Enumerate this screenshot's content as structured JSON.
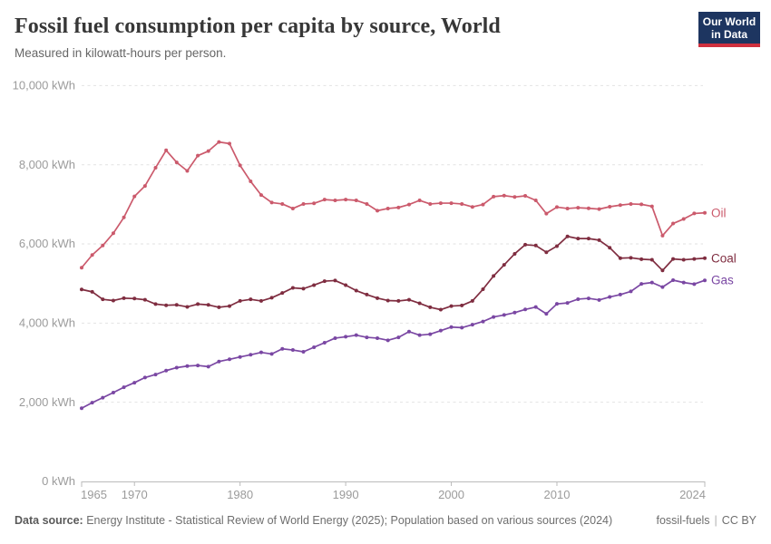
{
  "header": {
    "title": "Fossil fuel consumption per capita by source, World",
    "subtitle": "Measured in kilowatt-hours per person.",
    "logo": {
      "line1": "Our World",
      "line2": "in Data"
    }
  },
  "colors": {
    "oil": "#cb5a6c",
    "coal": "#7f2d40",
    "gas": "#7a47a3",
    "logo_bg": "#1d3560",
    "logo_accent": "#cf303e",
    "gridline": "#e2e2e2",
    "axis": "#bbbbbb",
    "tick_text": "#9b9b9b"
  },
  "chart_data": {
    "type": "line",
    "title": "Fossil fuel consumption per capita by source, World",
    "xlabel": "",
    "ylabel": "",
    "unit": "kWh",
    "ylim": [
      0,
      10000
    ],
    "yticks": [
      0,
      2000,
      4000,
      6000,
      8000,
      10000
    ],
    "xticks": [
      1965,
      1970,
      1980,
      1990,
      2000,
      2010,
      2024
    ],
    "grid": "horizontal-dashed",
    "legend_position": "right-end-of-line",
    "years": [
      1965,
      1966,
      1967,
      1968,
      1969,
      1970,
      1971,
      1972,
      1973,
      1974,
      1975,
      1976,
      1977,
      1978,
      1979,
      1980,
      1981,
      1982,
      1983,
      1984,
      1985,
      1986,
      1987,
      1988,
      1989,
      1990,
      1991,
      1992,
      1993,
      1994,
      1995,
      1996,
      1997,
      1998,
      1999,
      2000,
      2001,
      2002,
      2003,
      2004,
      2005,
      2006,
      2007,
      2008,
      2009,
      2010,
      2011,
      2012,
      2013,
      2014,
      2015,
      2016,
      2017,
      2018,
      2019,
      2020,
      2021,
      2022,
      2023,
      2024
    ],
    "series": [
      {
        "name": "Oil",
        "color": "#cb5a6c",
        "values": [
          5400,
          5720,
          5960,
          6270,
          6670,
          7200,
          7465,
          7925,
          8365,
          8060,
          7845,
          8230,
          8345,
          8575,
          8535,
          7985,
          7580,
          7235,
          7045,
          7010,
          6895,
          7010,
          7025,
          7120,
          7100,
          7120,
          7100,
          7010,
          6840,
          6895,
          6920,
          6995,
          7100,
          7010,
          7030,
          7030,
          7010,
          6935,
          6995,
          7195,
          7220,
          7185,
          7215,
          7100,
          6765,
          6930,
          6895,
          6915,
          6900,
          6880,
          6940,
          6980,
          7010,
          7000,
          6950,
          6210,
          6515,
          6630,
          6770,
          6785
        ]
      },
      {
        "name": "Coal",
        "color": "#7f2d40",
        "values": [
          4850,
          4790,
          4600,
          4570,
          4630,
          4620,
          4590,
          4480,
          4450,
          4460,
          4410,
          4480,
          4460,
          4400,
          4430,
          4560,
          4600,
          4560,
          4640,
          4760,
          4890,
          4870,
          4960,
          5060,
          5075,
          4960,
          4820,
          4720,
          4630,
          4570,
          4560,
          4590,
          4500,
          4400,
          4340,
          4430,
          4445,
          4560,
          4855,
          5190,
          5470,
          5750,
          5980,
          5960,
          5790,
          5945,
          6190,
          6135,
          6135,
          6095,
          5905,
          5640,
          5650,
          5615,
          5600,
          5330,
          5620,
          5600,
          5620,
          5640
        ]
      },
      {
        "name": "Gas",
        "color": "#7a47a3",
        "values": [
          1850,
          1990,
          2115,
          2245,
          2380,
          2495,
          2625,
          2700,
          2800,
          2875,
          2915,
          2930,
          2900,
          3030,
          3085,
          3145,
          3200,
          3260,
          3220,
          3350,
          3320,
          3275,
          3390,
          3505,
          3620,
          3655,
          3695,
          3640,
          3620,
          3565,
          3640,
          3785,
          3695,
          3720,
          3810,
          3900,
          3885,
          3960,
          4040,
          4155,
          4205,
          4265,
          4345,
          4405,
          4235,
          4485,
          4510,
          4605,
          4625,
          4585,
          4660,
          4720,
          4800,
          4990,
          5025,
          4910,
          5085,
          5025,
          4985,
          5080
        ]
      }
    ]
  },
  "footer": {
    "source_label": "Data source:",
    "source_text": "Energy Institute - Statistical Review of World Energy (2025); Population based on various sources (2024)",
    "slug": "fossil-fuels",
    "separator": "|",
    "license": "CC BY"
  }
}
